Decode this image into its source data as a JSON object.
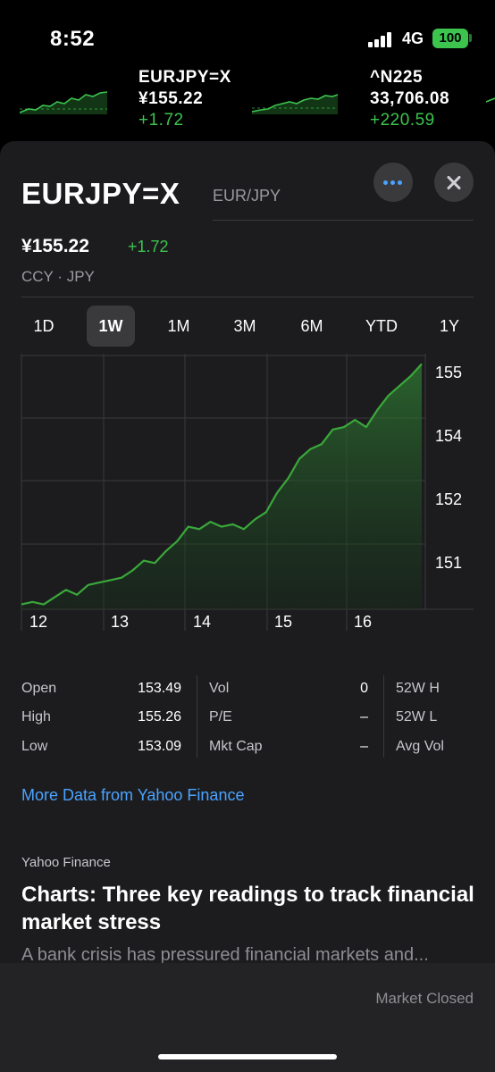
{
  "status_bar": {
    "time": "8:52",
    "network": "4G",
    "battery": "100"
  },
  "ticker": [
    {
      "symbol": "EURJPY=X",
      "price": "¥155.22",
      "change": "+1.72"
    },
    {
      "symbol": "^N225",
      "price": "33,706.08",
      "change": "+220.59"
    }
  ],
  "header": {
    "symbol": "EURJPY=X",
    "subtitle": "EUR/JPY"
  },
  "quote": {
    "price": "¥155.22",
    "change": "+1.72",
    "currency_line": "CCY · JPY"
  },
  "ranges": {
    "items": [
      "1D",
      "1W",
      "1M",
      "3M",
      "6M",
      "YTD",
      "1Y"
    ],
    "selected": "1W"
  },
  "chart_data": {
    "type": "area",
    "x_ticks": [
      "12",
      "13",
      "14",
      "15",
      "16"
    ],
    "y_ticks": [
      "155",
      "154",
      "152",
      "151"
    ],
    "series": [
      {
        "values": [
          150.3,
          150.35,
          150.3,
          150.45,
          150.6,
          150.5,
          150.7,
          150.75,
          150.8,
          150.85,
          151.0,
          151.2,
          151.15,
          151.4,
          151.6,
          151.9,
          151.85,
          152.0,
          151.9,
          151.95,
          151.85,
          152.05,
          152.2,
          152.6,
          152.9,
          153.3,
          153.5,
          153.6,
          153.9,
          153.95,
          154.1,
          153.95,
          154.3,
          154.6,
          154.8,
          155.0,
          155.25
        ]
      }
    ],
    "colors": {
      "line": "#3aa83a",
      "fill": "#1f4a22"
    }
  },
  "stats": {
    "col1": [
      {
        "label": "Open",
        "value": "153.49"
      },
      {
        "label": "High",
        "value": "155.26"
      },
      {
        "label": "Low",
        "value": "153.09"
      }
    ],
    "col2": [
      {
        "label": "Vol",
        "value": "0"
      },
      {
        "label": "P/E",
        "value": "–"
      },
      {
        "label": "Mkt Cap",
        "value": "–"
      }
    ],
    "col3": [
      {
        "label": "52W H"
      },
      {
        "label": "52W L"
      },
      {
        "label": "Avg Vol"
      }
    ]
  },
  "links": {
    "more_data": "More Data from Yahoo Finance"
  },
  "news": {
    "source": "Yahoo Finance",
    "title": "Charts: Three key readings to track financial market stress",
    "summary": "A bank crisis has pressured financial markets and..."
  },
  "footer": {
    "market_status": "Market Closed"
  },
  "colors": {
    "accent_green": "#3cc44e",
    "link_blue": "#4aa3ff",
    "sheet_bg": "#1c1c1e"
  }
}
